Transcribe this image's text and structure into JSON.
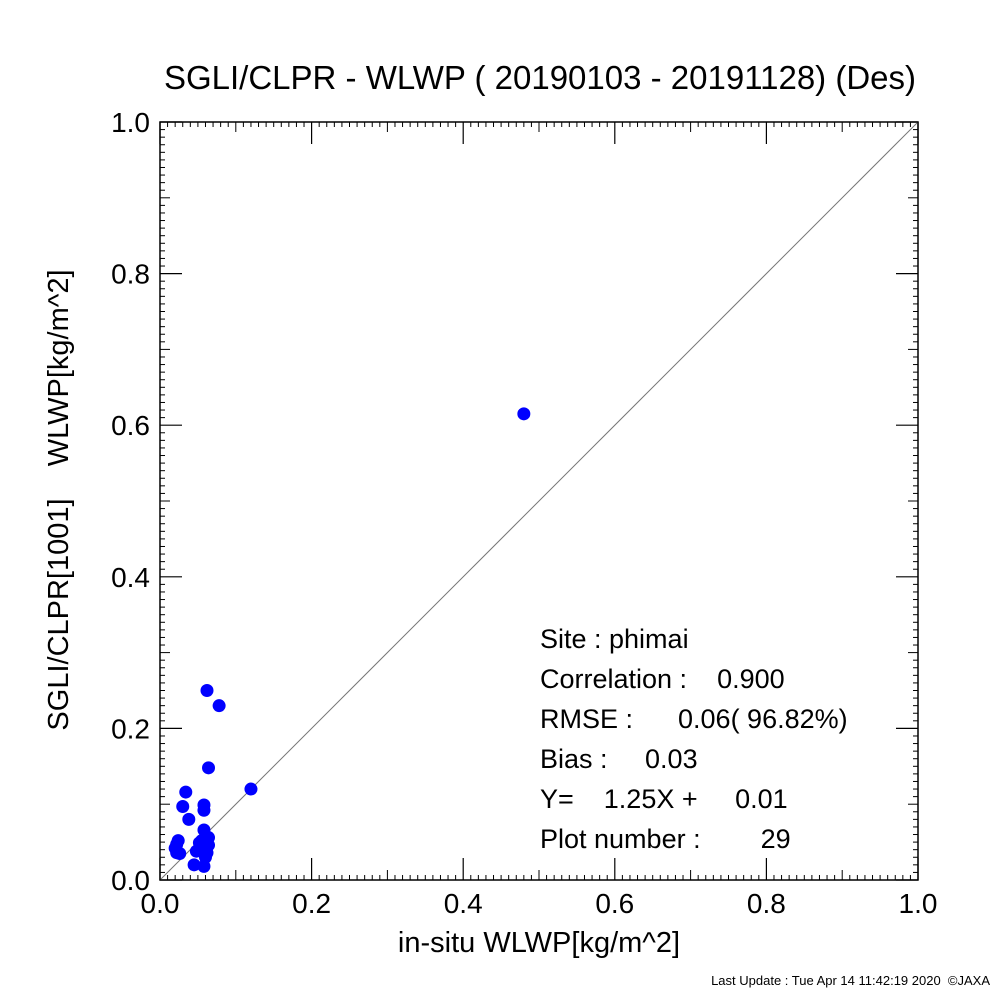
{
  "chart_data": {
    "type": "scatter",
    "title": "SGLI/CLPR - WLWP ( 20190103 - 20191128) (Des)",
    "xlabel": "in-situ WLWP[kg/m^2]",
    "ylabel": "SGLI/CLPR[1001]    WLWP[kg/m^2]",
    "xlim": [
      0.0,
      1.0
    ],
    "ylim": [
      0.0,
      1.0
    ],
    "x_ticks": [
      "0.0",
      "0.2",
      "0.4",
      "0.6",
      "0.8",
      "1.0"
    ],
    "y_ticks": [
      "0.0",
      "0.2",
      "0.4",
      "0.6",
      "0.8",
      "1.0"
    ],
    "reference_line": "1:1",
    "grid": false,
    "point_color": "#0000ff",
    "points": [
      {
        "x": 0.48,
        "y": 0.615
      },
      {
        "x": 0.12,
        "y": 0.12
      },
      {
        "x": 0.062,
        "y": 0.25
      },
      {
        "x": 0.078,
        "y": 0.23
      },
      {
        "x": 0.064,
        "y": 0.148
      },
      {
        "x": 0.034,
        "y": 0.116
      },
      {
        "x": 0.03,
        "y": 0.097
      },
      {
        "x": 0.058,
        "y": 0.099
      },
      {
        "x": 0.058,
        "y": 0.092
      },
      {
        "x": 0.038,
        "y": 0.08
      },
      {
        "x": 0.058,
        "y": 0.066
      },
      {
        "x": 0.024,
        "y": 0.052
      },
      {
        "x": 0.022,
        "y": 0.047
      },
      {
        "x": 0.02,
        "y": 0.042
      },
      {
        "x": 0.022,
        "y": 0.036
      },
      {
        "x": 0.026,
        "y": 0.035
      },
      {
        "x": 0.052,
        "y": 0.049
      },
      {
        "x": 0.056,
        "y": 0.045
      },
      {
        "x": 0.06,
        "y": 0.04
      },
      {
        "x": 0.064,
        "y": 0.046
      },
      {
        "x": 0.052,
        "y": 0.042
      },
      {
        "x": 0.058,
        "y": 0.038
      },
      {
        "x": 0.062,
        "y": 0.036
      },
      {
        "x": 0.055,
        "y": 0.052
      },
      {
        "x": 0.048,
        "y": 0.038
      },
      {
        "x": 0.06,
        "y": 0.03
      },
      {
        "x": 0.045,
        "y": 0.02
      },
      {
        "x": 0.058,
        "y": 0.018
      },
      {
        "x": 0.064,
        "y": 0.056
      }
    ],
    "stats": [
      "Site : phimai",
      "Correlation :    0.900",
      "RMSE :      0.06( 96.82%)",
      "Bias :     0.03",
      "Y=    1.25X +     0.01",
      "Plot number :        29"
    ]
  },
  "footer": "Last Update : Tue Apr 14 11:42:19 2020  ©JAXA"
}
